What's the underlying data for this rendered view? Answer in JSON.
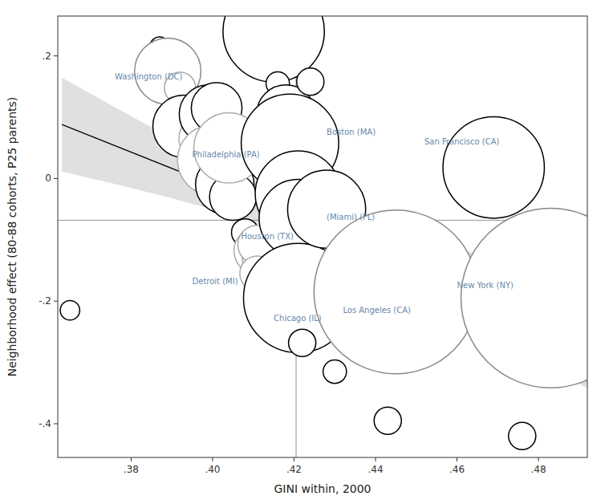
{
  "chart_data": {
    "type": "scatter",
    "xlabel": "GINI within, 2000",
    "ylabel": "Neighborhood effect (80-88 cohorts, P25 parents)",
    "xlim": [
      0.362,
      0.492
    ],
    "ylim": [
      -0.455,
      0.265
    ],
    "xticks": [
      {
        "value": 0.38,
        "label": ".38"
      },
      {
        "value": 0.4,
        "label": ".40"
      },
      {
        "value": 0.42,
        "label": ".42"
      },
      {
        "value": 0.44,
        "label": ".44"
      },
      {
        "value": 0.46,
        "label": ".46"
      },
      {
        "value": 0.48,
        "label": ".48"
      }
    ],
    "yticks": [
      {
        "value": -0.4,
        "label": "-.4"
      },
      {
        "value": -0.2,
        "label": "-.2"
      },
      0,
      {
        "value": 0.2,
        "label": ".2"
      }
    ],
    "grid": false,
    "x": [
      0.365,
      0.387,
      0.389,
      0.392,
      0.393,
      0.397,
      0.399,
      0.401,
      0.4,
      0.4,
      0.404,
      0.403,
      0.405,
      0.404,
      0.408,
      0.411,
      0.413,
      0.411,
      0.411,
      0.415,
      0.416,
      0.418,
      0.419,
      0.421,
      0.421,
      0.422,
      0.422,
      0.421,
      0.422,
      0.424,
      0.428,
      0.43,
      0.435,
      0.436,
      0.445,
      0.443,
      0.46,
      0.469,
      0.476,
      0.483
    ],
    "values": [
      -0.215,
      0.215,
      0.175,
      0.148,
      0.085,
      0.065,
      0.105,
      0.115,
      0.05,
      0.03,
      0.04,
      -0.01,
      -0.03,
      0.05,
      -0.088,
      -0.118,
      -0.128,
      -0.108,
      -0.155,
      0.24,
      0.155,
      0.105,
      0.058,
      -0.025,
      -0.065,
      -0.168,
      -0.188,
      -0.195,
      -0.268,
      0.158,
      -0.05,
      -0.315,
      -0.118,
      -0.18,
      -0.185,
      -0.395,
      0.025,
      0.018,
      -0.42,
      -0.195
    ],
    "sizes": [
      5,
      5,
      17,
      8,
      16,
      11,
      15,
      13,
      12,
      18,
      12,
      15,
      12,
      18,
      7,
      12,
      12,
      10,
      9,
      26,
      6,
      15,
      25,
      22,
      20,
      7,
      10,
      28,
      7,
      7,
      20,
      6,
      7,
      11,
      42,
      7,
      6,
      26,
      7,
      46
    ],
    "colors": [
      "black",
      "black",
      "#888888",
      "#aaaaaa",
      "black",
      "#aaaaaa",
      "black",
      "black",
      "#aaaaaa",
      "#aaaaaa",
      "black",
      "black",
      "black",
      "#aaaaaa",
      "black",
      "#aaaaaa",
      "#aaaaaa",
      "#aaaaaa",
      "#aaaaaa",
      "black",
      "black",
      "black",
      "black",
      "black",
      "black",
      "black",
      "black",
      "black",
      "black",
      "black",
      "black",
      "black",
      "black",
      "black",
      "#888888",
      "black",
      "black",
      "black",
      "black",
      "#888888"
    ],
    "annotations": [
      {
        "text": "Washington (DC)",
        "x": 0.376,
        "y": 0.165
      },
      {
        "text": "Philadelphia (PA)",
        "x": 0.395,
        "y": 0.038
      },
      {
        "text": "Houston (TX)",
        "x": 0.407,
        "y": -0.095
      },
      {
        "text": "Detroit (MI)",
        "x": 0.395,
        "y": -0.168
      },
      {
        "text": "Boston (MA)",
        "x": 0.428,
        "y": 0.075
      },
      {
        "text": "(Miami) (FL)",
        "x": 0.428,
        "y": -0.063
      },
      {
        "text": "Chicago (IL)",
        "x": 0.415,
        "y": -0.228
      },
      {
        "text": "Los Angeles (CA)",
        "x": 0.432,
        "y": -0.215
      },
      {
        "text": "San Francisco (CA)",
        "x": 0.452,
        "y": 0.06
      },
      {
        "text": "New York (NY)",
        "x": 0.46,
        "y": -0.175
      }
    ],
    "reference_lines": {
      "x": 0.4205,
      "y": -0.068
    },
    "fit": {
      "x": [
        0.363,
        0.492
      ],
      "values": [
        0.08805,
        -0.2538
      ]
    },
    "band": {
      "x": [
        0.363,
        0.375,
        0.39,
        0.405,
        0.422,
        0.435,
        0.45,
        0.465,
        0.48,
        0.492
      ],
      "lower": [
        0.01149,
        -0.00745,
        -0.03224,
        -0.05975,
        -0.09867,
        -0.13684,
        -0.18761,
        -0.2418,
        -0.29747,
        -0.34255
      ],
      "upper": [
        0.16461,
        0.11995,
        0.06524,
        0.01325,
        -0.03793,
        -0.06866,
        -0.09739,
        -0.1227,
        -0.14653,
        -0.16506
      ]
    }
  }
}
